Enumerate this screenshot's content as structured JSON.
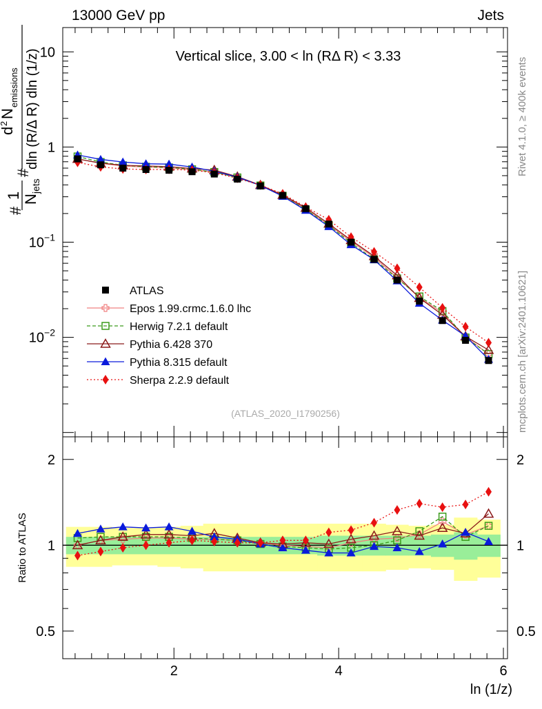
{
  "header": {
    "left": "13000 GeV pp",
    "right": "Jets"
  },
  "side_labels": {
    "rivet": "Rivet 4.1.0, ≥ 400k events",
    "mcplots": "mcplots.cern.ch [arXiv:2401.10621]"
  },
  "chart_data": {
    "type": "line",
    "title": "Vertical slice, 3.00 < ln (RΔ R) < 3.33",
    "analysis_id": "(ATLAS_2020_I1790256)",
    "xlabel": "ln (1/z)",
    "ylabel_main": {
      "part1": "#",
      "part2": "1",
      "part3": "N",
      "part4": "jets",
      "part5": "#",
      "part6": "d",
      "part7": "2",
      "part8": "N",
      "part9": "emissions",
      "part10": "dln (R/Δ R) dln (1/z)"
    },
    "ylabel_ratio": "Ratio to ATLAS",
    "xlim": [
      0.65,
      6.05
    ],
    "ylim_main": [
      0.0009,
      18
    ],
    "ylim_ratio": [
      0.4,
      2.4
    ],
    "x_ticks": [
      2,
      4,
      6
    ],
    "y_ticks_main": [
      {
        "value": 10,
        "label": "10"
      },
      {
        "value": 1,
        "label": "1"
      },
      {
        "value": 0.1,
        "base": "10",
        "exp": "−1"
      },
      {
        "value": 0.01,
        "base": "10",
        "exp": "−2"
      }
    ],
    "y_ticks_ratio": [
      {
        "value": 2,
        "label": "2"
      },
      {
        "value": 1,
        "label": "1"
      },
      {
        "value": 0.5,
        "label": "0.5"
      }
    ],
    "x": [
      0.83,
      1.11,
      1.38,
      1.66,
      1.94,
      2.22,
      2.49,
      2.77,
      3.05,
      3.32,
      3.6,
      3.88,
      4.15,
      4.43,
      4.71,
      4.98,
      5.26,
      5.54,
      5.82
    ],
    "data": {
      "name": "ATLAS",
      "values": [
        0.75,
        0.65,
        0.6,
        0.58,
        0.57,
        0.55,
        0.52,
        0.46,
        0.39,
        0.31,
        0.225,
        0.155,
        0.1,
        0.066,
        0.04,
        0.024,
        0.015,
        0.0093,
        0.0057
      ],
      "stat_band_rel": [
        0.07,
        0.07,
        0.07,
        0.07,
        0.07,
        0.07,
        0.07,
        0.07,
        0.07,
        0.07,
        0.07,
        0.08,
        0.08,
        0.08,
        0.08,
        0.08,
        0.09,
        0.11,
        0.09
      ],
      "total_band_rel": [
        0.16,
        0.16,
        0.15,
        0.15,
        0.16,
        0.17,
        0.19,
        0.19,
        0.19,
        0.19,
        0.19,
        0.19,
        0.19,
        0.19,
        0.18,
        0.17,
        0.18,
        0.25,
        0.23
      ]
    },
    "series": [
      {
        "name": "Epos 1.99.crmc.1.6.0 lhc",
        "color": "#f08080",
        "marker": "open-cross",
        "dash": "none",
        "ratio": [
          1.0,
          1.04,
          1.05,
          1.06,
          1.06,
          1.05,
          1.05,
          1.04,
          1.02,
          1.0,
          0.99,
          0.98,
          1.02,
          1.05,
          1.06,
          1.09,
          1.21,
          1.09,
          1.17
        ]
      },
      {
        "name": "Herwig 7.2.1 default",
        "color": "#3a9a1a",
        "marker": "open-square",
        "dash": "5,3",
        "ratio": [
          1.06,
          1.07,
          1.07,
          1.07,
          1.07,
          1.06,
          1.05,
          1.04,
          1.01,
          0.99,
          0.98,
          0.97,
          0.98,
          1.0,
          1.04,
          1.12,
          1.26,
          1.07,
          1.17
        ]
      },
      {
        "name": "Pythia 6.428 370",
        "color": "#8b1a1a",
        "marker": "open-triangle",
        "dash": "none",
        "ratio": [
          1.0,
          1.04,
          1.07,
          1.09,
          1.09,
          1.08,
          1.1,
          1.06,
          1.02,
          1.01,
          1.02,
          1.01,
          1.05,
          1.08,
          1.12,
          1.08,
          1.15,
          1.1,
          1.29
        ]
      },
      {
        "name": "Pythia 8.315 default",
        "color": "#0a1adb",
        "marker": "filled-triangle",
        "dash": "none",
        "ratio": [
          1.1,
          1.14,
          1.16,
          1.15,
          1.16,
          1.12,
          1.07,
          1.05,
          1.01,
          0.98,
          0.96,
          0.94,
          0.94,
          0.99,
          0.98,
          0.95,
          1.01,
          1.11,
          1.03
        ]
      },
      {
        "name": "Sherpa 2.2.9 default",
        "color": "#e81010",
        "marker": "filled-diamond",
        "dash": "2,3",
        "ratio": [
          0.92,
          0.95,
          0.98,
          1.0,
          1.02,
          1.04,
          1.03,
          1.02,
          1.02,
          1.04,
          1.04,
          1.11,
          1.13,
          1.2,
          1.33,
          1.4,
          1.36,
          1.39,
          1.54
        ]
      }
    ]
  }
}
